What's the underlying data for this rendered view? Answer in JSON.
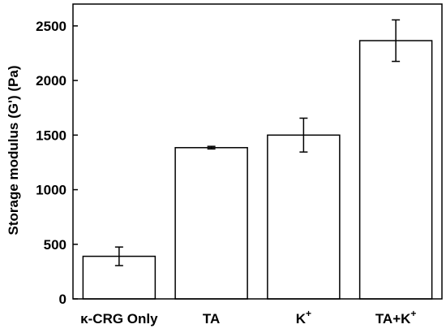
{
  "chart_data": {
    "type": "bar",
    "categories": [
      "κ-CRG Only",
      "TA",
      "K",
      "TA+K"
    ],
    "category_superscripts": [
      "",
      "",
      "+",
      "+"
    ],
    "values": [
      390,
      1385,
      1500,
      2365
    ],
    "errors": [
      85,
      12,
      155,
      190
    ],
    "title": "",
    "xlabel": "",
    "ylabel": "Storage modulus (G') (Pa)",
    "ylim": [
      0,
      2700
    ],
    "yticks": [
      0,
      500,
      1000,
      1500,
      2000,
      2500
    ],
    "grid": false,
    "bar_fill": "#ffffff",
    "bar_stroke": "#000000"
  }
}
